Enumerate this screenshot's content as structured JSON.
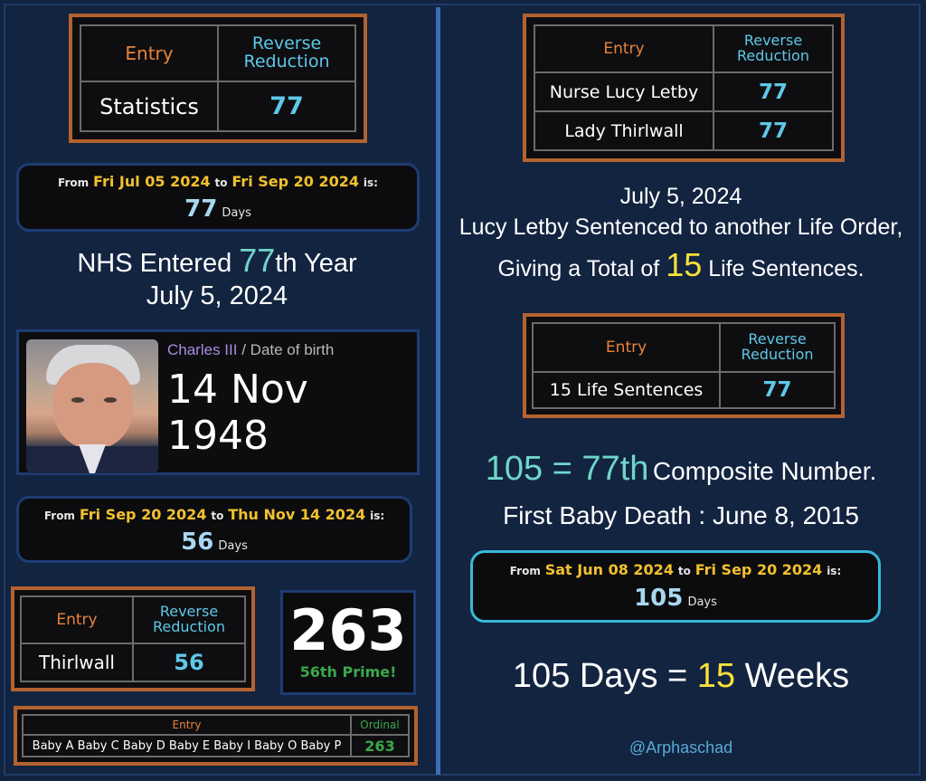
{
  "left": {
    "table_statistics": {
      "header_entry": "Entry",
      "header_reduction": "Reverse Reduction",
      "entry": "Statistics",
      "value": "77"
    },
    "pill1": {
      "from_label": "From",
      "from_date": "Fri Jul 05 2024",
      "to_label": "to",
      "to_date": "Fri Sep 20 2024",
      "is_label": "is:",
      "count": "77",
      "unit": "Days"
    },
    "nhs": {
      "text_before": "NHS Entered",
      "number": "77",
      "text_after": "th Year",
      "date": "July 5, 2024"
    },
    "charles": {
      "name": "Charles III",
      "separator": "/ Date of birth",
      "dob": "14 Nov 1948"
    },
    "pill2": {
      "from_label": "From",
      "from_date": "Fri Sep 20 2024",
      "to_label": "to",
      "to_date": "Thu Nov 14 2024",
      "is_label": "is:",
      "count": "56",
      "unit": "Days"
    },
    "table_thirlwall": {
      "header_entry": "Entry",
      "header_reduction": "Reverse Reduction",
      "entry": "Thirlwall",
      "value": "56"
    },
    "prime": {
      "number": "263",
      "label": "56th Prime!"
    },
    "table_babies": {
      "header_entry": "Entry",
      "header_ordinal": "Ordinal",
      "entry": "Baby A Baby C Baby D Baby E Baby I Baby O Baby P",
      "value": "263"
    }
  },
  "right": {
    "table_names": {
      "header_entry": "Entry",
      "header_reduction": "Reverse Reduction",
      "rows": [
        {
          "entry": "Nurse Lucy Letby",
          "value": "77"
        },
        {
          "entry": "Lady Thirlwall",
          "value": "77"
        }
      ]
    },
    "caption1": {
      "date": "July 5, 2024",
      "line2": "Lucy Letby Sentenced to another Life Order,",
      "line3_before": "Giving a Total of",
      "line3_number": "15",
      "line3_after": "Life Sentences."
    },
    "table_sentences": {
      "header_entry": "Entry",
      "header_reduction": "Reverse Reduction",
      "entry": "15 Life Sentences",
      "value": "77"
    },
    "caption2": {
      "highlight": "105 = 77th",
      "after": "Composite Number.",
      "line2": "First Baby Death : June 8, 2015"
    },
    "pill3": {
      "from_label": "From",
      "from_date": "Sat Jun 08 2024",
      "to_label": "to",
      "to_date": "Fri Sep 20 2024",
      "is_label": "is:",
      "count": "105",
      "unit": "Days"
    },
    "caption3": {
      "before": "105 Days =",
      "number": "15",
      "after": "Weeks"
    },
    "handle": "@Arphaschad"
  },
  "colors": {
    "background": "#122440",
    "table_border": "#b4622f",
    "entry_header": "#e8833a",
    "reduction_header": "#5ec8e8",
    "date_yellow": "#f2c12e",
    "highlight_yellow": "#f7e13a",
    "teal": "#6fd6c9",
    "prime_green": "#3aa84a",
    "pill3_border": "#39b8d8"
  }
}
